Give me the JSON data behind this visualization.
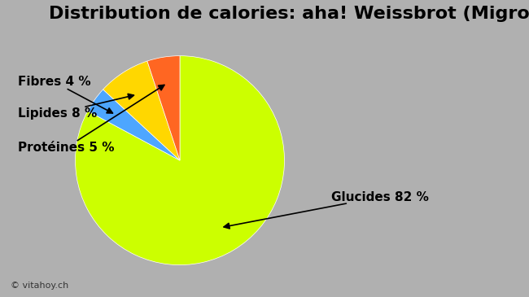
{
  "title": "Distribution de calories: aha! Weissbrot (Migros)",
  "slices": [
    {
      "label": "Glucides 82 %",
      "value": 82,
      "color": "#ccff00"
    },
    {
      "label": "Fibres 4 %",
      "value": 4,
      "color": "#4da6ff"
    },
    {
      "label": "Lipides 8 %",
      "value": 8,
      "color": "#ffd700"
    },
    {
      "label": "Protéines 5 %",
      "value": 5,
      "color": "#ff6622"
    }
  ],
  "background_color": "#b0b0b0",
  "title_fontsize": 16,
  "watermark": "© vitahoy.ch",
  "startangle": 90,
  "fig_width": 6.5,
  "fig_height": 3.65
}
